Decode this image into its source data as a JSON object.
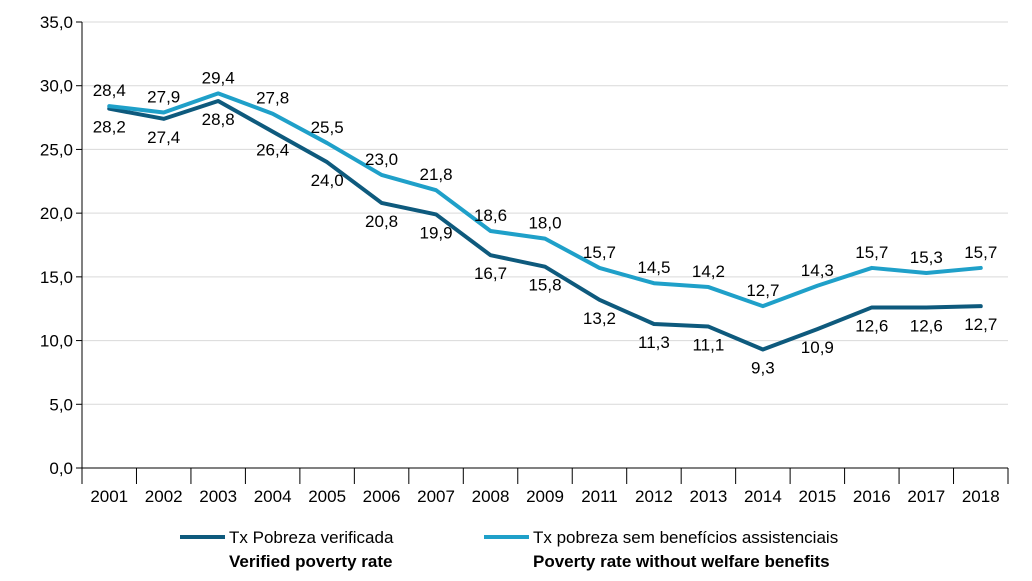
{
  "chart_data": {
    "type": "line",
    "categories": [
      "2001",
      "2002",
      "2003",
      "2004",
      "2005",
      "2006",
      "2007",
      "2008",
      "2009",
      "2011",
      "2012",
      "2013",
      "2014",
      "2015",
      "2016",
      "2017",
      "2018"
    ],
    "ylim": [
      0,
      35
    ],
    "yticks": [
      "0,0",
      "5,0",
      "10,0",
      "15,0",
      "20,0",
      "25,0",
      "30,0",
      "35,0"
    ],
    "grid": true,
    "legend_position": "bottom",
    "series": [
      {
        "name": "Tx Pobreza verificada",
        "name_en": "Verified poverty rate",
        "color": "#0e5a7d",
        "values": [
          28.2,
          27.4,
          28.8,
          26.4,
          24.0,
          20.8,
          19.9,
          16.7,
          15.8,
          13.2,
          11.3,
          11.1,
          9.3,
          10.9,
          12.6,
          12.6,
          12.7
        ],
        "labels": [
          "28,2",
          "27,4",
          "28,8",
          "26,4",
          "24,0",
          "20,8",
          "19,9",
          "16,7",
          "15,8",
          "13,2",
          "11,3",
          "11,1",
          "9,3",
          "10,9",
          "12,6",
          "12,6",
          "12,7"
        ]
      },
      {
        "name": "Tx pobreza  sem benefícios assistenciais",
        "name_en": "Poverty rate without welfare benefits",
        "color": "#1fa0c9",
        "values": [
          28.4,
          27.9,
          29.4,
          27.8,
          25.5,
          23.0,
          21.8,
          18.6,
          18.0,
          15.7,
          14.5,
          14.2,
          12.7,
          14.3,
          15.7,
          15.3,
          15.7
        ],
        "labels": [
          "28,4",
          "27,9",
          "29,4",
          "27,8",
          "25,5",
          "23,0",
          "21,8",
          "18,6",
          "18,0",
          "15,7",
          "14,5",
          "14,2",
          "12,7",
          "14,3",
          "15,7",
          "15,3",
          "15,7"
        ]
      }
    ]
  }
}
